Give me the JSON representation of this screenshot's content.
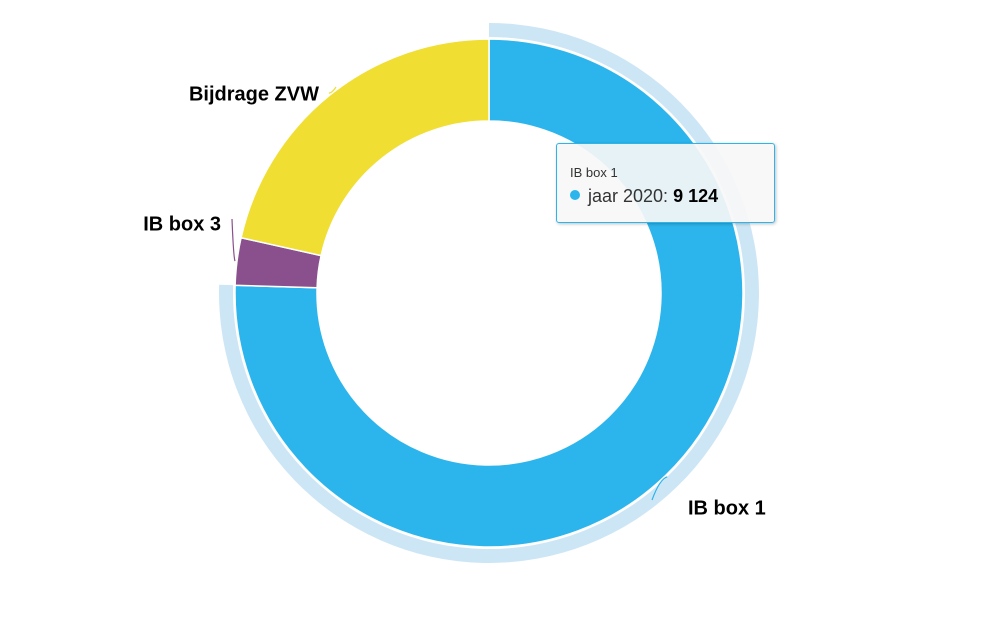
{
  "chart_data": {
    "type": "pie",
    "variant": "donut",
    "slices": [
      {
        "name": "IB box 1",
        "value": 9124,
        "color": "#2cb5ec",
        "hovered": true
      },
      {
        "name": "IB box 3",
        "value": 363,
        "color": "#8a4f8d"
      },
      {
        "name": "Bijdrage ZVW",
        "value": 2600,
        "color": "#f0de32"
      }
    ],
    "hover_halo_color": "#cde6f5",
    "slice_border_color": "#ffffff"
  },
  "tooltip": {
    "title": "IB box 1",
    "series_label": "jaar 2020: ",
    "value_text": "9 124",
    "dot_color": "#2cb5ec"
  }
}
